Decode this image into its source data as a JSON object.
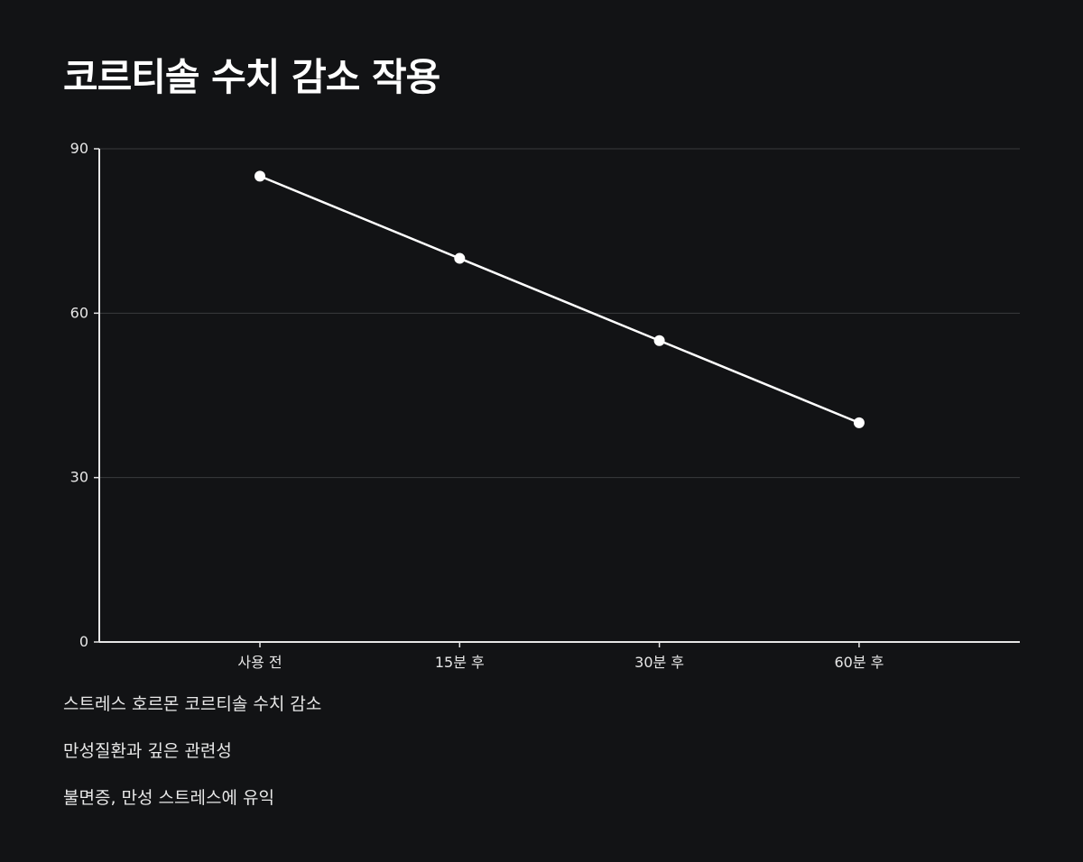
{
  "title": "코르티솔 수치 감소 작용",
  "chart_data": {
    "type": "line",
    "title": "코르티솔 수치 감소 작용",
    "categories": [
      "사용 전",
      "15분 후",
      "30분 후",
      "60분 후"
    ],
    "series": [
      {
        "values": [
          85,
          70,
          55,
          40
        ]
      }
    ],
    "ylim": [
      0,
      90
    ],
    "yticks": [
      0,
      30,
      60,
      90
    ],
    "grid": true,
    "xlabel": "",
    "ylabel": "",
    "colors": {
      "background": "#121315",
      "line": "#ffffff",
      "grid": "#3a3b3d",
      "axis": "#e6e6e6"
    }
  },
  "notes": [
    "스트레스 호르몬 코르티솔 수치 감소",
    "만성질환과 깊은 관련성",
    "불면증, 만성 스트레스에 유익"
  ]
}
